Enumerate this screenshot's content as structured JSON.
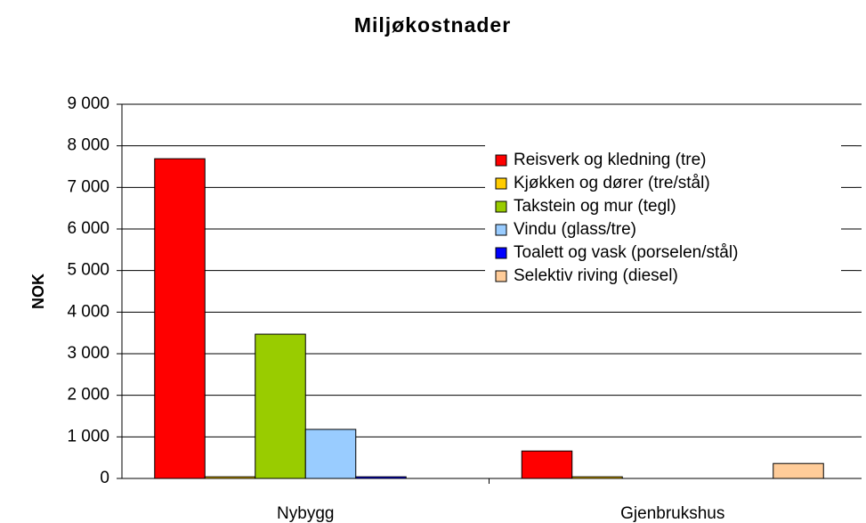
{
  "chart_data": {
    "type": "bar",
    "title": "Miljøkostnader",
    "y_label": "NOK",
    "categories": [
      "Nybygg",
      "Gjenbrukshus"
    ],
    "series": [
      {
        "name": "Reisverk og kledning (tre)",
        "color": "#ff0000",
        "values": [
          7690,
          660
        ]
      },
      {
        "name": "Kjøkken og dører (tre/stål)",
        "color": "#ffcc00",
        "values": [
          40,
          40
        ]
      },
      {
        "name": "Takstein og mur (tegl)",
        "color": "#99cc00",
        "values": [
          3470,
          0
        ]
      },
      {
        "name": "Vindu (glass/tre)",
        "color": "#99ccff",
        "values": [
          1180,
          0
        ]
      },
      {
        "name": "Toalett og vask (porselen/stål)",
        "color": "#0000ff",
        "values": [
          40,
          0
        ]
      },
      {
        "name": "Selektiv riving (diesel)",
        "color": "#ffcc99",
        "values": [
          0,
          360
        ]
      }
    ],
    "ylim": [
      0,
      9000
    ],
    "yticks": [
      0,
      {
        "value": 1000,
        "label": "1 000"
      },
      {
        "value": 2000,
        "label": "2 000"
      },
      {
        "value": 3000,
        "label": "3 000"
      },
      {
        "value": 4000,
        "label": "4 000"
      },
      {
        "value": 5000,
        "label": "5 000"
      },
      {
        "value": 6000,
        "label": "6 000"
      },
      {
        "value": 7000,
        "label": "7 000"
      },
      {
        "value": 8000,
        "label": "8 000"
      },
      {
        "value": 9000,
        "label": "9 000"
      }
    ],
    "grid": true,
    "legend": "upper right"
  }
}
